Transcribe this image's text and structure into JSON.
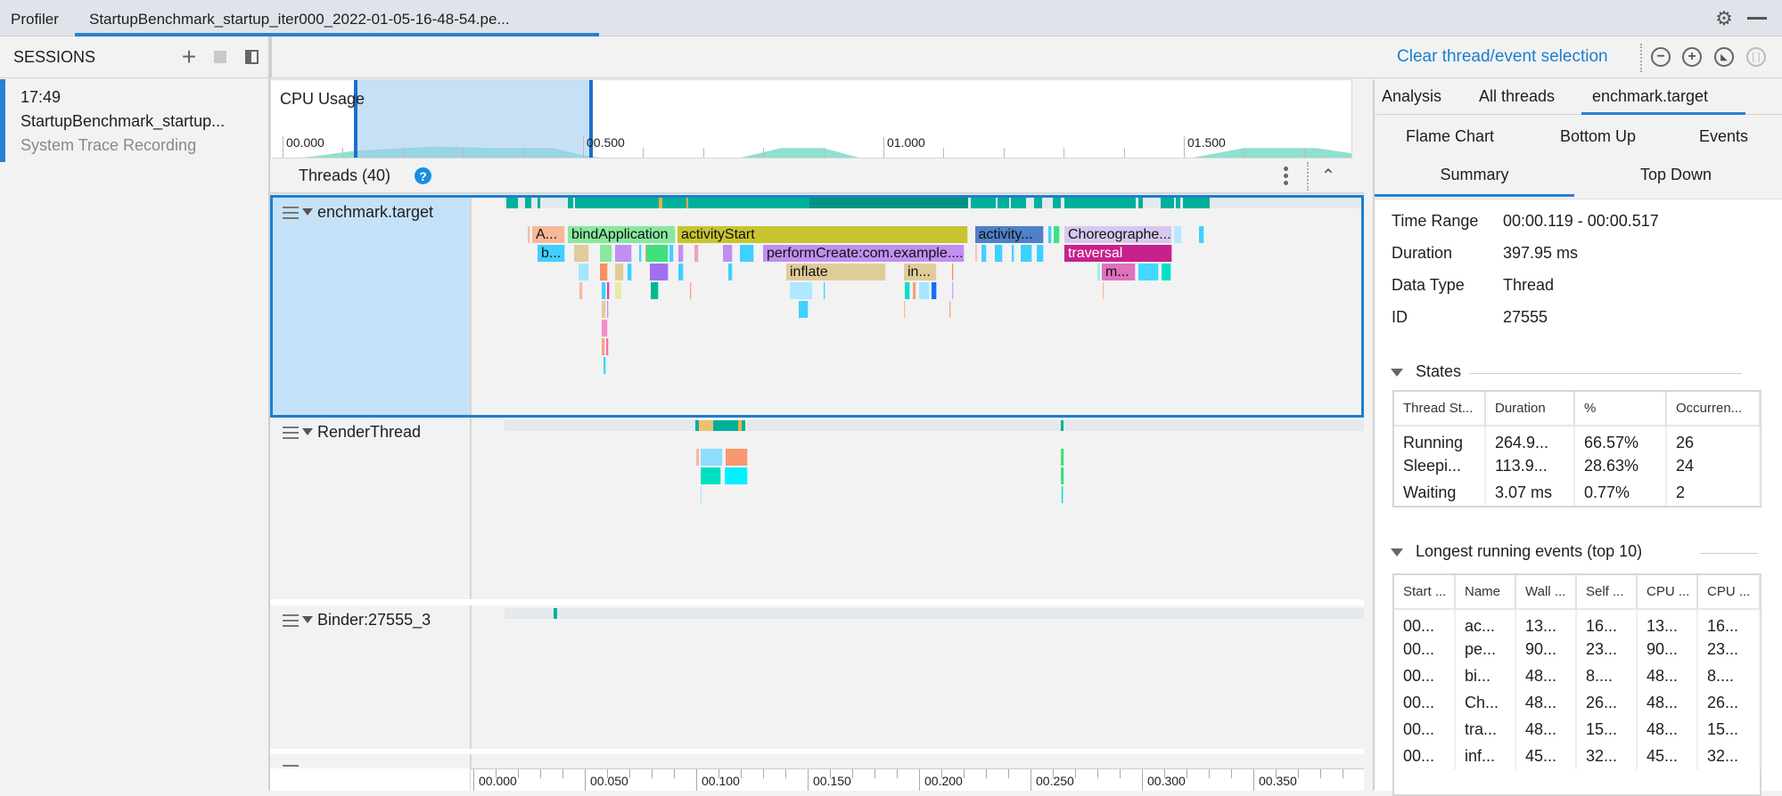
{
  "tabs": {
    "profiler": "Profiler",
    "session": "StartupBenchmark_startup_iter000_2022-01-05-16-48-54.pe..."
  },
  "sessions": {
    "title": "SESSIONS",
    "item": {
      "time": "17:49",
      "name": "StartupBenchmark_startup...",
      "type": "System Trace Recording"
    }
  },
  "toolbar": {
    "clear_selection": "Clear thread/event selection"
  },
  "colors": {
    "accent": "#2a7fd4",
    "link": "#1a7fd0",
    "selection": "#c5e1f7",
    "running": "#00b09a",
    "running_dark": "#009480",
    "cpu_area": "#8fe0d0"
  },
  "cpu": {
    "title": "CPU Usage",
    "axis_labels": [
      "00.000",
      "00.500",
      "01.000",
      "01.500"
    ],
    "axis_label_times_s": [
      0,
      0.5,
      1.0,
      1.5
    ],
    "selection_ms": [
      119,
      517
    ],
    "usage": [
      [
        0,
        0
      ],
      [
        0.05,
        2
      ],
      [
        0.12,
        6
      ],
      [
        0.25,
        9
      ],
      [
        0.35,
        8
      ],
      [
        0.45,
        8
      ],
      [
        0.5,
        3
      ],
      [
        0.55,
        0
      ],
      [
        0.75,
        0
      ],
      [
        0.83,
        8
      ],
      [
        0.9,
        8
      ],
      [
        0.97,
        0
      ],
      [
        1.5,
        0
      ],
      [
        1.6,
        8
      ],
      [
        1.72,
        8
      ],
      [
        1.8,
        3
      ],
      [
        1.88,
        2
      ]
    ]
  },
  "threads": {
    "header": "Threads (40)",
    "list": [
      {
        "name": "enchmark.target",
        "selected": true,
        "states": [
          [
            14.8,
            20,
            "#00b09a"
          ],
          [
            23,
            26,
            "#00b09a"
          ],
          [
            28.8,
            30,
            "#00b09a"
          ],
          [
            42.4,
            44.8,
            "#00b09a"
          ],
          [
            45.6,
            83,
            "#00b09a"
          ],
          [
            83,
            84.6,
            "#f0b040"
          ],
          [
            84.6,
            95.4,
            "#00b09a"
          ],
          [
            95.4,
            96.2,
            "#f0b040"
          ],
          [
            96.2,
            150.8,
            "#00b09a"
          ],
          [
            150.8,
            222,
            "#009480"
          ],
          [
            223.2,
            234.4,
            "#00b09a"
          ],
          [
            235.2,
            240.4,
            "#00b09a"
          ],
          [
            241.2,
            248,
            "#00b09a"
          ],
          [
            251.6,
            255.2,
            "#00b09a"
          ],
          [
            260,
            263.6,
            "#00b09a"
          ],
          [
            265.2,
            297,
            "#00b09a"
          ],
          [
            298.4,
            300.4,
            "#00b09a"
          ],
          [
            308.4,
            314.4,
            "#00b09a"
          ],
          [
            315.2,
            317.2,
            "#00b09a"
          ],
          [
            318.4,
            330.4,
            "#00b09a"
          ]
        ],
        "events": [
          [
            24.5,
            25.5,
            0,
            "#f8b8a0",
            ""
          ],
          [
            26.4,
            41.2,
            0,
            "#f8b898",
            "A..."
          ],
          [
            42.4,
            90.8,
            0,
            "#88e8a0",
            "bindApplication"
          ],
          [
            91.6,
            222,
            0,
            "#c8c430",
            "activityStart"
          ],
          [
            225,
            256,
            0,
            "#5080c8",
            "activity..."
          ],
          [
            258,
            259.6,
            0,
            "#40d0ff",
            ""
          ],
          [
            260.4,
            263.2,
            0,
            "#40e080",
            ""
          ],
          [
            265.2,
            313.6,
            0,
            "#d8c8f0",
            "Choreographe..."
          ],
          [
            314.4,
            318,
            0,
            "#b8e8ff",
            ""
          ],
          [
            325.6,
            328,
            0,
            "#40d0ff",
            ""
          ],
          [
            28.8,
            41.2,
            1,
            "#40d0ff",
            "b..."
          ],
          [
            45.2,
            52,
            1,
            "#e0cc98",
            ""
          ],
          [
            56.8,
            62.4,
            1,
            "#88e8a0",
            ""
          ],
          [
            63.6,
            71.2,
            1,
            "#c090f0",
            ""
          ],
          [
            74.5,
            75.5,
            1,
            "#40d0ff",
            ""
          ],
          [
            77,
            77.8,
            1,
            "#f8a080",
            ""
          ],
          [
            77.6,
            87.6,
            1,
            "#40e080",
            ""
          ],
          [
            88,
            90,
            1,
            "#40d0ff",
            ""
          ],
          [
            92,
            94.4,
            1,
            "#c090f0",
            ""
          ],
          [
            99.2,
            101.2,
            1,
            "#f0a0c8",
            ""
          ],
          [
            112,
            116.4,
            1,
            "#c090f0",
            ""
          ],
          [
            119.6,
            126,
            1,
            "#40d0ff",
            ""
          ],
          [
            130,
            220.4,
            1,
            "#c090f0",
            "performCreate:com.example...."
          ],
          [
            225,
            226.4,
            1,
            "#f8c0d0",
            ""
          ],
          [
            228,
            230.4,
            1,
            "#40d0ff",
            ""
          ],
          [
            234,
            237.6,
            1,
            "#40d0ff",
            ""
          ],
          [
            241.6,
            242.8,
            1,
            "#40d0ff",
            ""
          ],
          [
            245.6,
            250.8,
            1,
            "#40d0ff",
            ""
          ],
          [
            252.8,
            256,
            1,
            "#40d0ff",
            ""
          ],
          [
            265.2,
            313.6,
            1,
            "#c8208c",
            "traversal"
          ],
          [
            47.2,
            52,
            2,
            "#a8e4ff",
            ""
          ],
          [
            56.8,
            60.4,
            2,
            "#f89060",
            ""
          ],
          [
            63.6,
            67.6,
            2,
            "#e0cc98",
            ""
          ],
          [
            69.2,
            71.2,
            2,
            "#40d0ff",
            ""
          ],
          [
            79.2,
            87.6,
            2,
            "#a070f0",
            ""
          ],
          [
            92,
            94.4,
            2,
            "#40d0ff",
            ""
          ],
          [
            114.4,
            116.4,
            2,
            "#40d0ff",
            ""
          ],
          [
            140.4,
            185.2,
            2,
            "#e0cc98",
            "inflate"
          ],
          [
            193.2,
            208,
            2,
            "#e0cc98",
            "in..."
          ],
          [
            214.8,
            215.6,
            2,
            "#f89060",
            ""
          ],
          [
            280,
            281.6,
            2,
            "#a0f0e0",
            ""
          ],
          [
            282,
            297,
            2,
            "#e070c0",
            "m..."
          ],
          [
            298.4,
            307.6,
            2,
            "#40d8ff",
            ""
          ],
          [
            308.8,
            313.2,
            2,
            "#00e0c8",
            ""
          ],
          [
            47.6,
            49.2,
            3,
            "#f8b8a0",
            ""
          ],
          [
            57.6,
            59.6,
            3,
            "#40d0ff",
            ""
          ],
          [
            59.8,
            61,
            3,
            "#e040a0",
            ""
          ],
          [
            63.6,
            66.8,
            3,
            "#e8e8b0",
            ""
          ],
          [
            79.6,
            83.2,
            3,
            "#00b890",
            ""
          ],
          [
            97,
            97.8,
            3,
            "#f8a080",
            ""
          ],
          [
            142,
            152.4,
            3,
            "#b0e8ff",
            ""
          ],
          [
            157,
            157.8,
            3,
            "#40d0ff",
            ""
          ],
          [
            193.6,
            196,
            3,
            "#00e0c8",
            ""
          ],
          [
            197.2,
            198.8,
            3,
            "#f8a080",
            ""
          ],
          [
            200,
            204.8,
            3,
            "#a8e4ff",
            ""
          ],
          [
            205.6,
            208,
            3,
            "#1070f0",
            ""
          ],
          [
            214.8,
            215.6,
            3,
            "#c8a8f0",
            ""
          ],
          [
            282.4,
            283.2,
            3,
            "#f8b8a0",
            ""
          ],
          [
            57.6,
            59.6,
            4,
            "#e0cc98",
            ""
          ],
          [
            59.8,
            60.6,
            4,
            "#c090f0",
            ""
          ],
          [
            146,
            150.4,
            4,
            "#40d0ff",
            ""
          ],
          [
            193.2,
            194,
            4,
            "#f8b8a0",
            ""
          ],
          [
            213.6,
            214.4,
            4,
            "#f8a080",
            ""
          ],
          [
            57.6,
            60.4,
            5,
            "#f090c8",
            ""
          ],
          [
            57.6,
            59.2,
            6,
            "#f8a080",
            ""
          ],
          [
            59.4,
            60.6,
            6,
            "#f070b0",
            ""
          ],
          [
            58.4,
            59.6,
            7,
            "#40d0ff",
            ""
          ]
        ]
      },
      {
        "name": "RenderThread",
        "selected": false,
        "states": [
          [
            99.6,
            101.2,
            "#00b09a"
          ],
          [
            101.2,
            107.6,
            "#f0c070"
          ],
          [
            107.6,
            108.4,
            "#00b09a"
          ],
          [
            108.4,
            118.8,
            "#00b09a"
          ],
          [
            118.8,
            120.4,
            "#f0b040"
          ],
          [
            120.4,
            122,
            "#00b09a"
          ],
          [
            263.6,
            264.6,
            "#00b09a"
          ]
        ],
        "events": [
          [
            100,
            101.6,
            0,
            "#f8b898",
            ""
          ],
          [
            102,
            112,
            0,
            "#90dcff",
            ""
          ],
          [
            113.2,
            123.2,
            0,
            "#f89870",
            ""
          ],
          [
            263.6,
            265,
            0,
            "#40e080",
            ""
          ],
          [
            102,
            111.2,
            1,
            "#00e0c0",
            ""
          ],
          [
            112.8,
            123.2,
            1,
            "#00f0ff",
            ""
          ],
          [
            263.6,
            265,
            1,
            "#40e080",
            ""
          ],
          [
            102,
            102.6,
            2,
            "#a8e4ff",
            ""
          ],
          [
            113,
            113.6,
            2,
            "#e0e0a0",
            ""
          ],
          [
            264,
            264.8,
            2,
            "#00d0e0",
            ""
          ]
        ]
      },
      {
        "name": "Binder:27555_3",
        "selected": false,
        "states": [
          [
            36,
            37.6,
            "#00b09a"
          ]
        ],
        "events": []
      }
    ]
  },
  "timeline": {
    "axis_labels": [
      "00.000",
      "00.050",
      "00.100",
      "00.150",
      "00.200",
      "00.250",
      "00.300",
      "00.350"
    ],
    "axis_label_times_ms": [
      0,
      50,
      100,
      150,
      200,
      250,
      300,
      350
    ]
  },
  "right": {
    "tabs": [
      "Analysis",
      "All threads",
      "enchmark.target"
    ],
    "subtabs_row1": [
      "Flame Chart",
      "Bottom Up",
      "Events"
    ],
    "subtabs_row2": [
      "Summary",
      "Top Down"
    ],
    "summary": [
      {
        "label": "Time Range",
        "value": "00:00.119 - 00:00.517"
      },
      {
        "label": "Duration",
        "value": "397.95 ms"
      },
      {
        "label": "Data Type",
        "value": "Thread"
      },
      {
        "label": "ID",
        "value": "27555"
      }
    ],
    "states": {
      "title": "States",
      "columns": [
        "Thread St...",
        "Duration",
        "%",
        "Occurren..."
      ],
      "rows": [
        [
          "Running",
          "264.9...",
          "66.57%",
          "26"
        ],
        [
          "Sleepi...",
          "113.9...",
          "28.63%",
          "24"
        ],
        [
          "Waiting",
          "3.07 ms",
          "0.77%",
          "2"
        ]
      ]
    },
    "longest": {
      "title": "Longest running events (top 10)",
      "columns": [
        "Start ...",
        "Name",
        "Wall ...",
        "Self ...",
        "CPU ...",
        "CPU ..."
      ],
      "rows": [
        [
          "00...",
          "ac...",
          "13...",
          "16...",
          "13...",
          "16..."
        ],
        [
          "00...",
          "pe...",
          "90...",
          "23...",
          "90...",
          "23..."
        ],
        [
          "00...",
          "bi...",
          "48...",
          "8....",
          "48...",
          "8...."
        ],
        [
          "00...",
          "Ch...",
          "48...",
          "26...",
          "48...",
          "26..."
        ],
        [
          "00...",
          "tra...",
          "48...",
          "15...",
          "48...",
          "15..."
        ],
        [
          "00...",
          "inf...",
          "45...",
          "32...",
          "45...",
          "32..."
        ]
      ]
    }
  }
}
